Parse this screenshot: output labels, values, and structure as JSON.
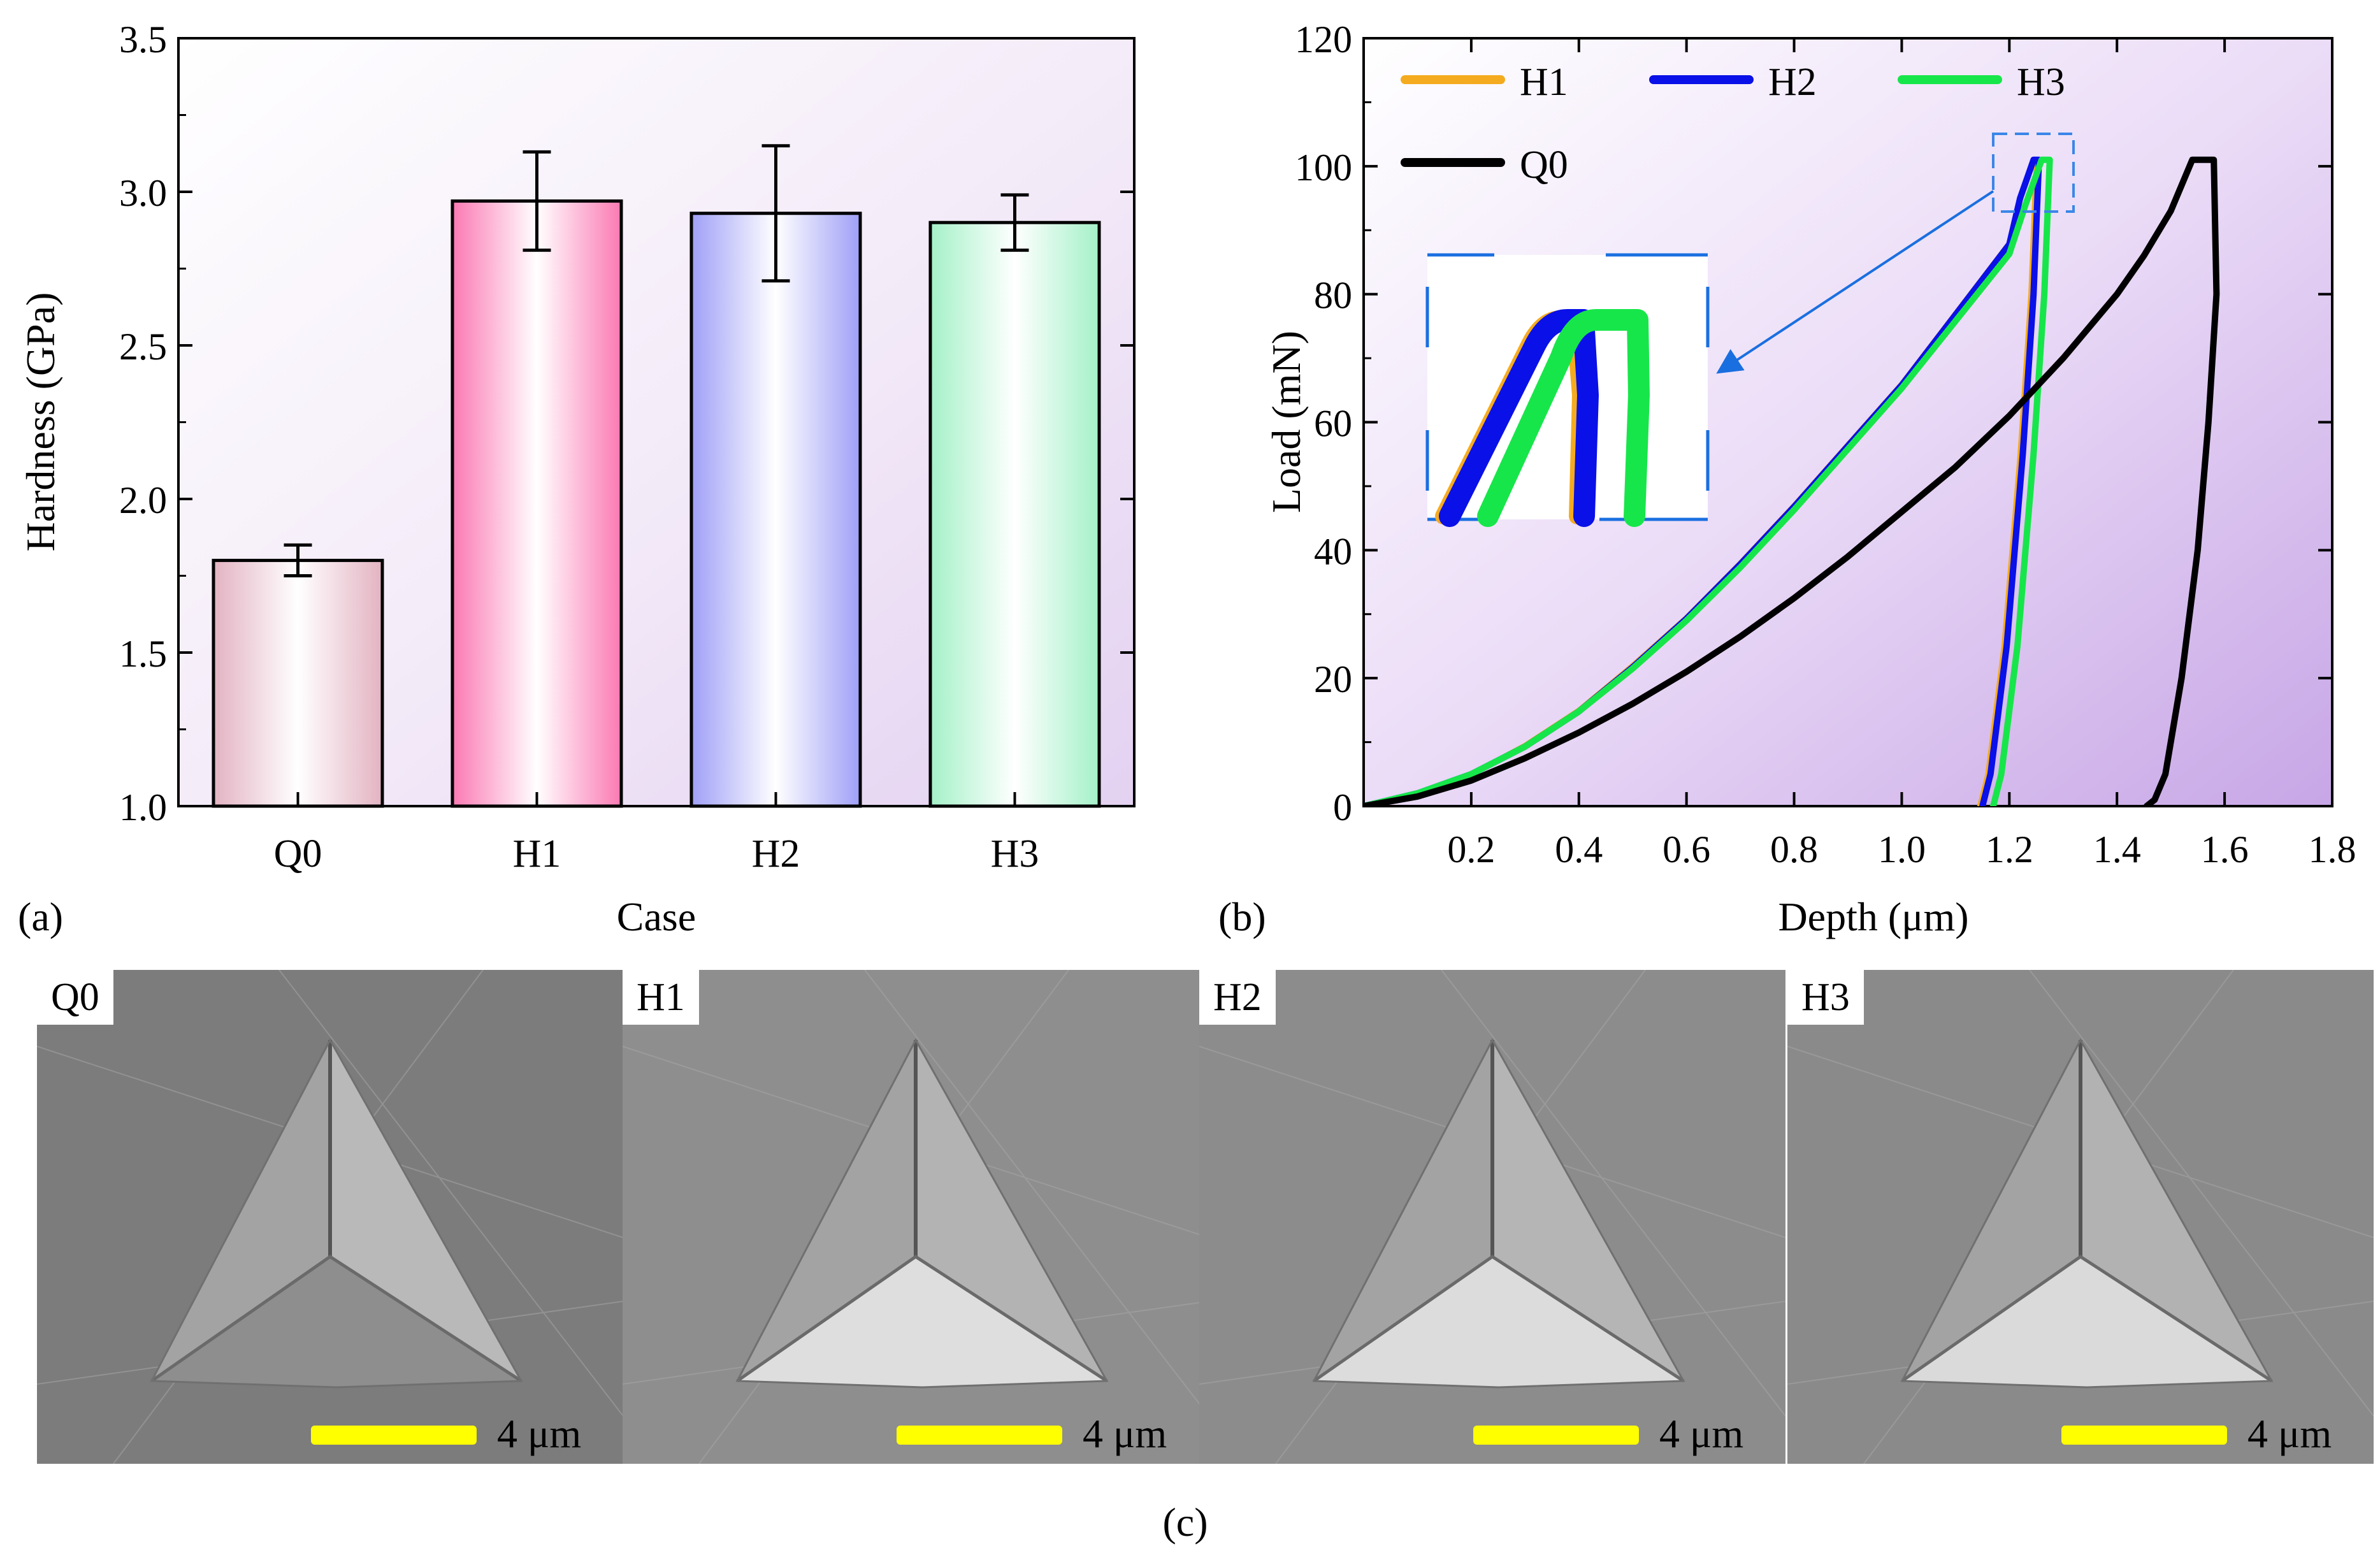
{
  "chart_data": [
    {
      "panel": "(a)",
      "type": "bar",
      "title": "",
      "xlabel": "Case",
      "ylabel": "Hardness (GPa)",
      "ylim": [
        1.0,
        3.5
      ],
      "yticks": [
        "1.0",
        "1.5",
        "2.0",
        "2.5",
        "3.0",
        "3.5"
      ],
      "categories": [
        "Q0",
        "H1",
        "H2",
        "H3"
      ],
      "values": [
        1.8,
        2.97,
        2.93,
        2.9
      ],
      "errors": [
        0.05,
        0.16,
        0.22,
        0.09
      ],
      "colors": [
        "#e3b3c2",
        "#fb79b3",
        "#a8a8f8",
        "#aaf2cc"
      ],
      "grid": false
    },
    {
      "panel": "(b)",
      "type": "line",
      "title": "",
      "xlabel": "Depth (μm)",
      "ylabel": "Load (mN)",
      "xlim": [
        0.0,
        1.8
      ],
      "ylim": [
        0,
        120
      ],
      "xticks": [
        "0.2",
        "0.4",
        "0.6",
        "0.8",
        "1.0",
        "1.2",
        "1.4",
        "1.6",
        "1.8"
      ],
      "yticks": [
        "0",
        "20",
        "40",
        "60",
        "80",
        "100",
        "120"
      ],
      "legend_placement": "top-left",
      "series": [
        {
          "name": "H1",
          "color": "#f5ab1f",
          "x": [
            0.0,
            0.1,
            0.2,
            0.3,
            0.4,
            0.5,
            0.6,
            0.7,
            0.8,
            0.9,
            1.0,
            1.1,
            1.2,
            1.22,
            1.245,
            1.25,
            1.24,
            1.22,
            1.19,
            1.16,
            1.145
          ],
          "y": [
            0,
            2,
            5,
            9.5,
            15,
            22,
            29.5,
            38,
            47,
            56.5,
            66,
            77,
            88,
            95,
            101,
            101,
            80,
            55,
            25,
            5,
            0
          ]
        },
        {
          "name": "H2",
          "color": "#0a10e8",
          "x": [
            0.0,
            0.1,
            0.2,
            0.3,
            0.4,
            0.5,
            0.6,
            0.7,
            0.8,
            0.9,
            1.0,
            1.1,
            1.2,
            1.22,
            1.245,
            1.255,
            1.245,
            1.225,
            1.195,
            1.165,
            1.15
          ],
          "y": [
            0,
            2,
            5,
            9.3,
            14.8,
            21.7,
            29.3,
            37.8,
            46.8,
            56.3,
            65.8,
            76.8,
            87.8,
            95,
            101,
            101,
            80,
            55,
            25,
            5,
            0
          ]
        },
        {
          "name": "H3",
          "color": "#17e64a",
          "x": [
            0.0,
            0.1,
            0.2,
            0.3,
            0.4,
            0.5,
            0.6,
            0.7,
            0.8,
            0.9,
            1.0,
            1.1,
            1.2,
            1.23,
            1.26,
            1.275,
            1.265,
            1.245,
            1.215,
            1.185,
            1.17
          ],
          "y": [
            0,
            2,
            5,
            9.3,
            14.8,
            21.5,
            29,
            37.3,
            46.3,
            55.8,
            65.3,
            75.8,
            86.3,
            94,
            101,
            101,
            80,
            55,
            25,
            5,
            0
          ]
        },
        {
          "name": "Q0",
          "color": "#000000",
          "x": [
            0.0,
            0.1,
            0.2,
            0.3,
            0.4,
            0.5,
            0.6,
            0.7,
            0.8,
            0.9,
            1.0,
            1.1,
            1.2,
            1.3,
            1.4,
            1.45,
            1.5,
            1.54,
            1.58,
            1.585,
            1.57,
            1.55,
            1.52,
            1.49,
            1.47,
            1.455
          ],
          "y": [
            0,
            1.5,
            4,
            7.5,
            11.5,
            16,
            21,
            26.5,
            32.5,
            39,
            46,
            53,
            61,
            70,
            80,
            86,
            93,
            101,
            101,
            80,
            60,
            40,
            20,
            5,
            1,
            0
          ]
        }
      ],
      "inset": {
        "note": "zoomed view of the H1/H2/H3 curves near peak load (~100 mN)"
      }
    }
  ],
  "panel_labels": {
    "a": "(a)",
    "b": "(b)",
    "c": "(c)"
  },
  "micrographs": {
    "caption": "(c)",
    "scale_text": "4 μm",
    "images": [
      {
        "label": "Q0"
      },
      {
        "label": "H1"
      },
      {
        "label": "H2"
      },
      {
        "label": "H3"
      }
    ]
  }
}
